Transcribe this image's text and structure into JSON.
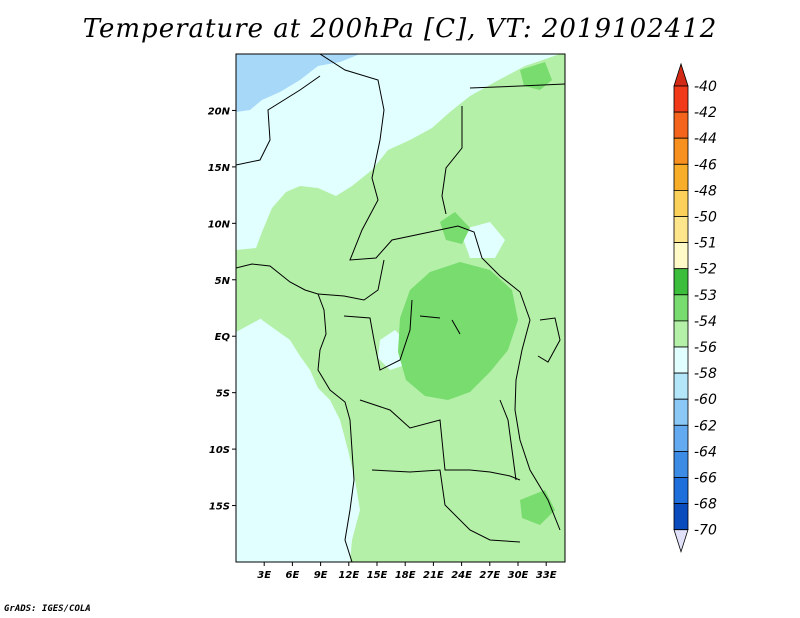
{
  "title": "Temperature at 200hPa [C], VT: 2019102412",
  "credit": "GrADS: IGES/COLA",
  "map": {
    "lon_range": [
      0,
      35
    ],
    "lat_range": [
      -20,
      25
    ],
    "lat_ticks": [
      {
        "value": 20,
        "label": "20N"
      },
      {
        "value": 15,
        "label": "15N"
      },
      {
        "value": 10,
        "label": "10N"
      },
      {
        "value": 5,
        "label": "5N"
      },
      {
        "value": 0,
        "label": "EQ"
      },
      {
        "value": -5,
        "label": "5S"
      },
      {
        "value": -10,
        "label": "10S"
      },
      {
        "value": -15,
        "label": "15S"
      }
    ],
    "lon_ticks": [
      {
        "value": 3,
        "label": "3E"
      },
      {
        "value": 6,
        "label": "6E"
      },
      {
        "value": 9,
        "label": "9E"
      },
      {
        "value": 12,
        "label": "12E"
      },
      {
        "value": 15,
        "label": "15E"
      },
      {
        "value": 18,
        "label": "18E"
      },
      {
        "value": 21,
        "label": "21E"
      },
      {
        "value": 24,
        "label": "24E"
      },
      {
        "value": 27,
        "label": "27E"
      },
      {
        "value": 30,
        "label": "30E"
      },
      {
        "value": 33,
        "label": "33E"
      }
    ]
  },
  "colorbar": {
    "levels": [
      {
        "label": "-40",
        "color": "#f03a1a"
      },
      {
        "label": "-42",
        "color": "#f5641c"
      },
      {
        "label": "-44",
        "color": "#f7901e"
      },
      {
        "label": "-46",
        "color": "#f9ae2a"
      },
      {
        "label": "-48",
        "color": "#fbd15c"
      },
      {
        "label": "-50",
        "color": "#fde58c"
      },
      {
        "label": "-51",
        "color": "#fffac8"
      },
      {
        "label": "-52",
        "color": "#3cbe3c"
      },
      {
        "label": "-53",
        "color": "#78dc6e"
      },
      {
        "label": "-54",
        "color": "#b4f0a8"
      },
      {
        "label": "-56",
        "color": "#e1ffff"
      },
      {
        "label": "-58",
        "color": "#b4e6fa"
      },
      {
        "label": "-60",
        "color": "#8cc8f5"
      },
      {
        "label": "-62",
        "color": "#64aaf0"
      },
      {
        "label": "-64",
        "color": "#3c8ce6"
      },
      {
        "label": "-66",
        "color": "#1e6edc"
      },
      {
        "label": "-68",
        "color": "#0a4bbe"
      },
      {
        "label": "-70",
        "color": "#08238c"
      }
    ],
    "top_color": "#d22a14",
    "bottom_color": "#e1e1fa"
  }
}
